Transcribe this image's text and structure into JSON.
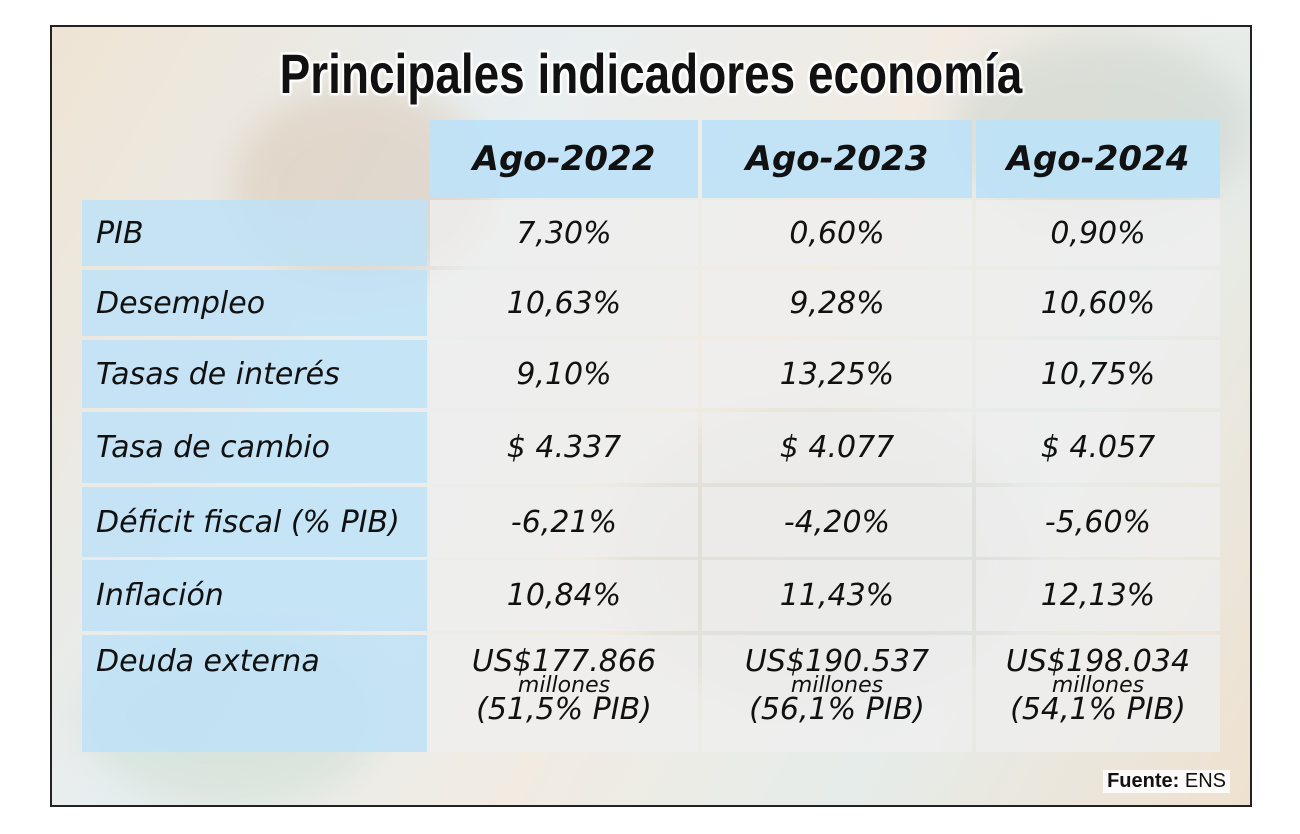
{
  "title": "Principales indicadores economía",
  "table": {
    "header": [
      "Ago-2022",
      "Ago-2023",
      "Ago-2024"
    ],
    "rows": [
      {
        "label": "PIB",
        "values": [
          "7,30%",
          "0,60%",
          "0,90%"
        ]
      },
      {
        "label": "Desempleo",
        "values": [
          "10,63%",
          "9,28%",
          "10,60%"
        ]
      },
      {
        "label": "Tasas de interés",
        "values": [
          "9,10%",
          "13,25%",
          "10,75%"
        ]
      },
      {
        "label": "Tasa de cambio",
        "values": [
          "$ 4.337",
          "$ 4.077",
          "$ 4.057"
        ]
      },
      {
        "label": "Déficit fiscal (% PIB)",
        "values": [
          "-6,21%",
          "-4,20%",
          "-5,60%"
        ]
      },
      {
        "label": "Inflación",
        "values": [
          "10,84%",
          "11,43%",
          "12,13%"
        ]
      },
      {
        "label": "Deuda externa",
        "values": [
          [
            "US$177.866",
            "millones",
            "(51,5% PIB)"
          ],
          [
            "US$190.537",
            "millones",
            "(56,1% PIB)"
          ],
          [
            "US$198.034",
            "millones",
            "(54,1% PIB)"
          ]
        ]
      }
    ]
  },
  "source": {
    "label": "Fuente:",
    "value": "ENS"
  }
}
